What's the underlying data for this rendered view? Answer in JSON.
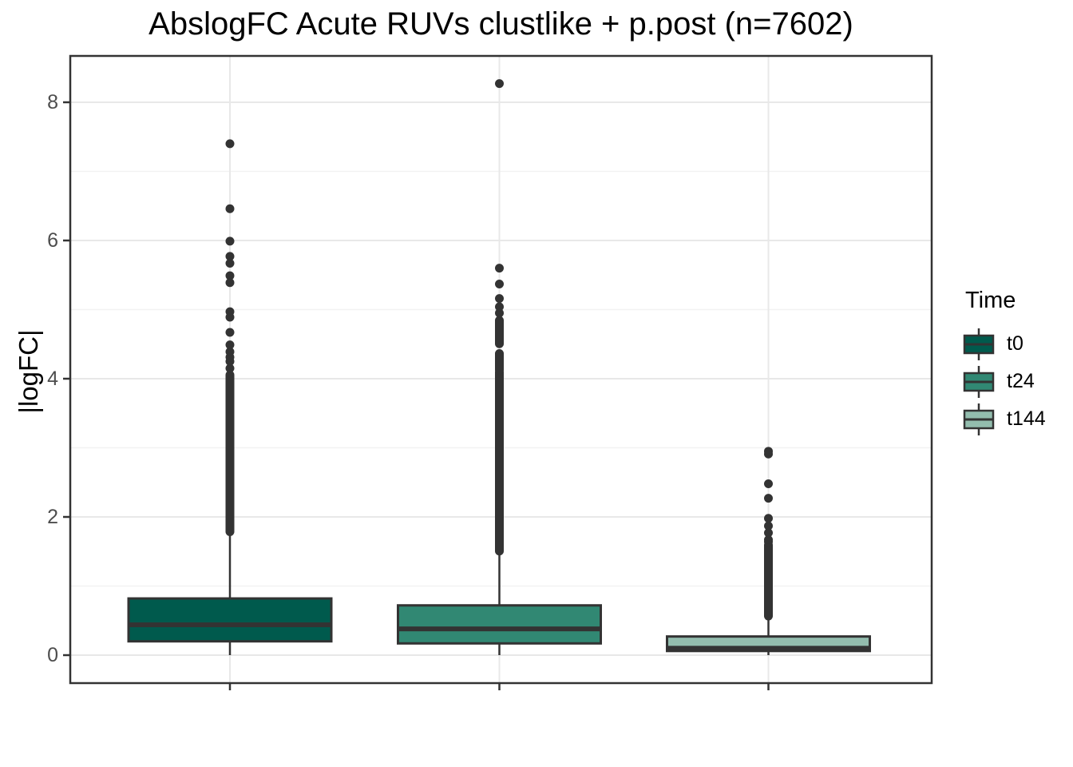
{
  "title": "AbslogFC Acute RUVs clustlike + p.post (n=7602)",
  "y_axis": {
    "label": "|logFC|",
    "tick_labels": [
      "0",
      "2",
      "4",
      "6",
      "8"
    ]
  },
  "x_axis": {
    "tick_labels": [
      "",
      "",
      ""
    ]
  },
  "legend": {
    "title": "Time",
    "items": [
      {
        "label": "t0",
        "color": "#005A4D"
      },
      {
        "label": "t24",
        "color": "#318873"
      },
      {
        "label": "t144",
        "color": "#93BDAE"
      }
    ]
  },
  "colors": {
    "background": "#FFFFFF",
    "panel_border": "#333333",
    "box_line": "#333333",
    "outlier_dot": "#333333",
    "grid_major": "#E8E8E8",
    "grid_minor": "#F2F2F2",
    "axis_tick": "#333333",
    "axis_text": "#4D4D4D",
    "title_text": "#000000"
  },
  "chart_data": {
    "type": "boxplot",
    "title": "AbslogFC Acute RUVs clustlike + p.post (n=7602)",
    "xlabel": "",
    "ylabel": "|logFC|",
    "ylim": [
      -0.45,
      8.65
    ],
    "y_major_ticks": [
      0,
      2,
      4,
      6,
      8
    ],
    "y_minor_gridlines": [
      1,
      3,
      5,
      7
    ],
    "grid": true,
    "legend_position": "right",
    "legend_title": "Time",
    "n_total": 7602,
    "groups": [
      {
        "name": "t0",
        "fill": "#005A4D",
        "q1": 0.2,
        "median": 0.44,
        "q3": 0.82,
        "whisker_low": 0.0,
        "whisker_high": 1.73,
        "outlier_segments": [
          [
            1.78,
            4.06
          ]
        ],
        "outlier_points": [
          4.15,
          4.25,
          4.31,
          4.39,
          4.49,
          4.67,
          4.89,
          4.97,
          5.39,
          5.49,
          5.67,
          5.77,
          5.99,
          6.46,
          7.4
        ]
      },
      {
        "name": "t24",
        "fill": "#318873",
        "q1": 0.17,
        "median": 0.38,
        "q3": 0.72,
        "whisker_low": 0.0,
        "whisker_high": 1.48,
        "outlier_segments": [
          [
            1.5,
            4.1
          ],
          [
            4.12,
            4.37
          ],
          [
            4.5,
            4.85
          ]
        ],
        "outlier_points": [
          4.95,
          5.04,
          5.16,
          5.37,
          5.6,
          8.27
        ]
      },
      {
        "name": "t144",
        "fill": "#93BDAE",
        "q1": 0.06,
        "median": 0.1,
        "q3": 0.27,
        "whisker_low": 0.0,
        "whisker_high": 0.54,
        "outlier_segments": [
          [
            0.56,
            1.6
          ]
        ],
        "outlier_points": [
          1.64,
          1.67,
          1.77,
          1.87,
          1.98,
          2.27,
          2.48,
          2.91,
          2.95
        ]
      }
    ]
  }
}
